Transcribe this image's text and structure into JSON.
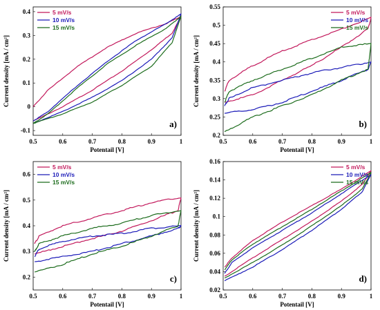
{
  "colors": {
    "s5": "#c2185b",
    "s10": "#1a1ab8",
    "s15": "#1b6b1b"
  },
  "chart_data": [
    {
      "id": "a",
      "type": "line",
      "panel_label": "a)",
      "xlabel": "Potentail [V]",
      "ylabel": "Current density [mA / cm²]",
      "xlim": [
        0.5,
        1.0
      ],
      "ylim": [
        -0.12,
        0.42
      ],
      "xticks": [
        "0.5",
        "0.6",
        "0.7",
        "0.8",
        "0.9",
        "1"
      ],
      "xtick_values": [
        0.5,
        0.6,
        0.7,
        0.8,
        0.9,
        1.0
      ],
      "yticks": [
        "-0.1",
        "0",
        "0.1",
        "0.2",
        "0.3",
        "0.4"
      ],
      "ytick_values": [
        -0.1,
        0,
        0.1,
        0.2,
        0.3,
        0.4
      ],
      "legend_position": "top-left",
      "series": [
        {
          "name": "5 mV/s",
          "color": "#c2185b",
          "forward": [
            [
              0.5,
              -0.06
            ],
            [
              0.6,
              0.0
            ],
            [
              0.7,
              0.07
            ],
            [
              0.8,
              0.15
            ],
            [
              0.9,
              0.24
            ],
            [
              0.97,
              0.31
            ],
            [
              1.0,
              0.38
            ]
          ],
          "reverse": [
            [
              1.0,
              0.38
            ],
            [
              0.95,
              0.35
            ],
            [
              0.85,
              0.31
            ],
            [
              0.75,
              0.25
            ],
            [
              0.65,
              0.17
            ],
            [
              0.55,
              0.07
            ],
            [
              0.5,
              0.0
            ]
          ]
        },
        {
          "name": "10 mV/s",
          "color": "#1a1ab8",
          "forward": [
            [
              0.5,
              -0.07
            ],
            [
              0.6,
              -0.02
            ],
            [
              0.7,
              0.04
            ],
            [
              0.8,
              0.11
            ],
            [
              0.9,
              0.2
            ],
            [
              0.97,
              0.29
            ],
            [
              1.0,
              0.39
            ]
          ],
          "reverse": [
            [
              1.0,
              0.39
            ],
            [
              0.95,
              0.35
            ],
            [
              0.85,
              0.28
            ],
            [
              0.75,
              0.19
            ],
            [
              0.65,
              0.09
            ],
            [
              0.55,
              -0.02
            ],
            [
              0.5,
              -0.06
            ]
          ]
        },
        {
          "name": "15 mV/s",
          "color": "#1b6b1b",
          "forward": [
            [
              0.5,
              -0.07
            ],
            [
              0.6,
              -0.03
            ],
            [
              0.7,
              0.02
            ],
            [
              0.8,
              0.09
            ],
            [
              0.9,
              0.17
            ],
            [
              0.97,
              0.27
            ],
            [
              1.0,
              0.38
            ]
          ],
          "reverse": [
            [
              1.0,
              0.38
            ],
            [
              0.95,
              0.33
            ],
            [
              0.85,
              0.26
            ],
            [
              0.75,
              0.18
            ],
            [
              0.65,
              0.08
            ],
            [
              0.55,
              -0.03
            ],
            [
              0.5,
              -0.07
            ]
          ]
        }
      ]
    },
    {
      "id": "b",
      "type": "line",
      "panel_label": "b)",
      "xlabel": "Potentail [V]",
      "ylabel": "Current density [mA / cm²]",
      "xlim": [
        0.5,
        1.0
      ],
      "ylim": [
        0.2,
        0.55
      ],
      "xticks": [
        "0.5",
        "0.6",
        "0.7",
        "0.8",
        "0.9",
        "1"
      ],
      "xtick_values": [
        0.5,
        0.6,
        0.7,
        0.8,
        0.9,
        1.0
      ],
      "yticks": [
        "0.2",
        "0.25",
        "0.3",
        "0.35",
        "0.4",
        "0.45",
        "0.5",
        "0.55"
      ],
      "ytick_values": [
        0.2,
        0.25,
        0.3,
        0.35,
        0.4,
        0.45,
        0.5,
        0.55
      ],
      "legend_position": "top-right",
      "series": [
        {
          "name": "5 mV/s",
          "color": "#c2185b",
          "forward": [
            [
              0.505,
              0.29
            ],
            [
              0.6,
              0.31
            ],
            [
              0.7,
              0.35
            ],
            [
              0.8,
              0.39
            ],
            [
              0.9,
              0.44
            ],
            [
              0.99,
              0.49
            ],
            [
              1.0,
              0.52
            ]
          ],
          "reverse": [
            [
              1.0,
              0.52
            ],
            [
              0.9,
              0.49
            ],
            [
              0.8,
              0.46
            ],
            [
              0.7,
              0.43
            ],
            [
              0.6,
              0.39
            ],
            [
              0.52,
              0.35
            ],
            [
              0.505,
              0.32
            ]
          ]
        },
        {
          "name": "10 mV/s",
          "color": "#1a1ab8",
          "forward": [
            [
              0.505,
              0.26
            ],
            [
              0.6,
              0.27
            ],
            [
              0.7,
              0.29
            ],
            [
              0.8,
              0.32
            ],
            [
              0.9,
              0.35
            ],
            [
              0.99,
              0.38
            ],
            [
              1.0,
              0.4
            ]
          ],
          "reverse": [
            [
              1.0,
              0.4
            ],
            [
              0.9,
              0.385
            ],
            [
              0.8,
              0.37
            ],
            [
              0.7,
              0.35
            ],
            [
              0.6,
              0.33
            ],
            [
              0.52,
              0.3
            ],
            [
              0.505,
              0.28
            ]
          ]
        },
        {
          "name": "15 mV/s",
          "color": "#1b6b1b",
          "forward": [
            [
              0.505,
              0.21
            ],
            [
              0.6,
              0.25
            ],
            [
              0.7,
              0.28
            ],
            [
              0.8,
              0.31
            ],
            [
              0.9,
              0.35
            ],
            [
              0.99,
              0.38
            ],
            [
              1.0,
              0.45
            ]
          ],
          "reverse": [
            [
              1.0,
              0.45
            ],
            [
              0.9,
              0.44
            ],
            [
              0.8,
              0.41
            ],
            [
              0.7,
              0.38
            ],
            [
              0.6,
              0.35
            ],
            [
              0.52,
              0.32
            ],
            [
              0.505,
              0.29
            ]
          ]
        }
      ]
    },
    {
      "id": "c",
      "type": "line",
      "panel_label": "c)",
      "xlabel": "Potentail [V]",
      "ylabel": "Current density [mA / cm²]",
      "xlim": [
        0.5,
        1.0
      ],
      "ylim": [
        0.15,
        0.65
      ],
      "xticks": [
        "0.5",
        "0.6",
        "0.7",
        "0.8",
        "0.9",
        "1"
      ],
      "xtick_values": [
        0.5,
        0.6,
        0.7,
        0.8,
        0.9,
        1.0
      ],
      "yticks": [
        "0.2",
        "0.3",
        "0.4",
        "0.5",
        "0.6"
      ],
      "ytick_values": [
        0.2,
        0.3,
        0.4,
        0.5,
        0.6
      ],
      "legend_position": "top-left",
      "series": [
        {
          "name": "5 mV/s",
          "color": "#c2185b",
          "forward": [
            [
              0.505,
              0.29
            ],
            [
              0.6,
              0.32
            ],
            [
              0.7,
              0.35
            ],
            [
              0.8,
              0.38
            ],
            [
              0.9,
              0.42
            ],
            [
              0.99,
              0.46
            ],
            [
              1.0,
              0.51
            ]
          ],
          "reverse": [
            [
              1.0,
              0.51
            ],
            [
              0.9,
              0.49
            ],
            [
              0.8,
              0.46
            ],
            [
              0.7,
              0.43
            ],
            [
              0.6,
              0.4
            ],
            [
              0.52,
              0.36
            ],
            [
              0.505,
              0.33
            ]
          ]
        },
        {
          "name": "10 mV/s",
          "color": "#1a1ab8",
          "forward": [
            [
              0.505,
              0.26
            ],
            [
              0.6,
              0.28
            ],
            [
              0.7,
              0.3
            ],
            [
              0.8,
              0.33
            ],
            [
              0.9,
              0.36
            ],
            [
              0.99,
              0.39
            ],
            [
              1.0,
              0.4
            ]
          ],
          "reverse": [
            [
              1.0,
              0.4
            ],
            [
              0.9,
              0.39
            ],
            [
              0.8,
              0.37
            ],
            [
              0.7,
              0.36
            ],
            [
              0.6,
              0.34
            ],
            [
              0.52,
              0.31
            ],
            [
              0.505,
              0.28
            ]
          ]
        },
        {
          "name": "15 mV/s",
          "color": "#1b6b1b",
          "forward": [
            [
              0.505,
              0.22
            ],
            [
              0.6,
              0.25
            ],
            [
              0.7,
              0.29
            ],
            [
              0.8,
              0.32
            ],
            [
              0.9,
              0.36
            ],
            [
              0.99,
              0.4
            ],
            [
              1.0,
              0.46
            ]
          ],
          "reverse": [
            [
              1.0,
              0.46
            ],
            [
              0.9,
              0.44
            ],
            [
              0.8,
              0.41
            ],
            [
              0.7,
              0.39
            ],
            [
              0.6,
              0.36
            ],
            [
              0.52,
              0.33
            ],
            [
              0.505,
              0.3
            ]
          ]
        }
      ]
    },
    {
      "id": "d",
      "type": "line",
      "panel_label": "d)",
      "xlabel": "Potentail [V]",
      "ylabel": "Current density [mA / cm²]",
      "xlim": [
        0.5,
        1.0
      ],
      "ylim": [
        0.02,
        0.16
      ],
      "xticks": [
        "0.5",
        "0.6",
        "0.7",
        "0.8",
        "0.9",
        "1"
      ],
      "xtick_values": [
        0.5,
        0.6,
        0.7,
        0.8,
        0.9,
        1.0
      ],
      "yticks": [
        "0.02",
        "0.04",
        "0.06",
        "0.08",
        "0.1",
        "0.12",
        "0.14",
        "0.16"
      ],
      "ytick_values": [
        0.02,
        0.04,
        0.06,
        0.08,
        0.1,
        0.12,
        0.14,
        0.16
      ],
      "legend_position": "top-right",
      "series": [
        {
          "name": "5 mV/s",
          "color": "#c2185b",
          "forward": [
            [
              0.505,
              0.035
            ],
            [
              0.6,
              0.055
            ],
            [
              0.7,
              0.075
            ],
            [
              0.8,
              0.095
            ],
            [
              0.9,
              0.117
            ],
            [
              0.97,
              0.135
            ],
            [
              1.0,
              0.15
            ]
          ],
          "reverse": [
            [
              1.0,
              0.15
            ],
            [
              0.9,
              0.13
            ],
            [
              0.8,
              0.112
            ],
            [
              0.7,
              0.094
            ],
            [
              0.6,
              0.074
            ],
            [
              0.53,
              0.055
            ],
            [
              0.505,
              0.045
            ]
          ]
        },
        {
          "name": "10 mV/s",
          "color": "#1a1ab8",
          "forward": [
            [
              0.505,
              0.03
            ],
            [
              0.6,
              0.045
            ],
            [
              0.7,
              0.064
            ],
            [
              0.8,
              0.085
            ],
            [
              0.9,
              0.108
            ],
            [
              0.97,
              0.127
            ],
            [
              1.0,
              0.146
            ]
          ],
          "reverse": [
            [
              1.0,
              0.146
            ],
            [
              0.9,
              0.125
            ],
            [
              0.8,
              0.104
            ],
            [
              0.7,
              0.085
            ],
            [
              0.6,
              0.066
            ],
            [
              0.53,
              0.05
            ],
            [
              0.505,
              0.038
            ]
          ]
        },
        {
          "name": "15 mV/s",
          "color": "#1b6b1b",
          "forward": [
            [
              0.505,
              0.033
            ],
            [
              0.6,
              0.05
            ],
            [
              0.7,
              0.069
            ],
            [
              0.8,
              0.09
            ],
            [
              0.9,
              0.112
            ],
            [
              0.97,
              0.13
            ],
            [
              1.0,
              0.148
            ]
          ],
          "reverse": [
            [
              1.0,
              0.148
            ],
            [
              0.9,
              0.128
            ],
            [
              0.8,
              0.108
            ],
            [
              0.7,
              0.089
            ],
            [
              0.6,
              0.07
            ],
            [
              0.53,
              0.053
            ],
            [
              0.505,
              0.042
            ]
          ]
        }
      ]
    }
  ]
}
